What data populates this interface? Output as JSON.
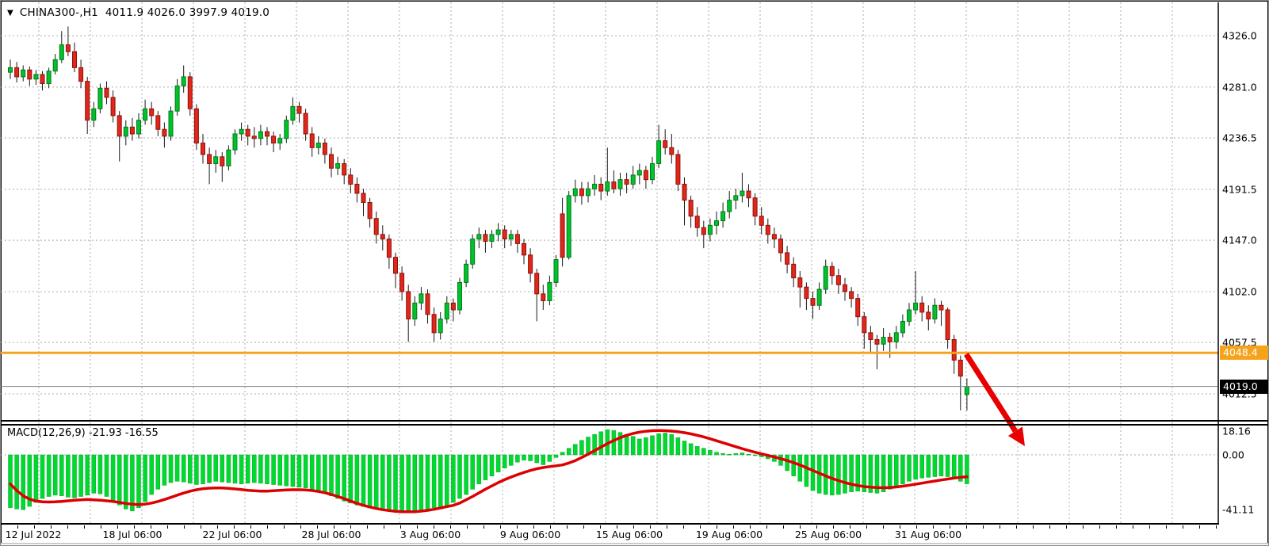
{
  "title": {
    "dropdown_icon": "▼",
    "symbol": "CHINA300-,H1",
    "ohlc": "4011.9 4026.0 3997.9 4019.0"
  },
  "indicator_label": {
    "name": "MACD(12,26,9)",
    "values": "-21.93 -16.55"
  },
  "colors": {
    "background": "#ffffff",
    "bull": "#00c32b",
    "bull_border": "#00791a",
    "bear": "#e0271b",
    "bear_border": "#8f1009",
    "wick": "#1a1a1a",
    "histogram": "#00d930",
    "histogram_border": "#00a824",
    "signal": "#dd0000",
    "orange_line": "#f5a31c",
    "price_line": "#808080",
    "grid": "#acacac",
    "badge_orange_bg": "#f5a31c",
    "badge_black_bg": "#000000",
    "badge_text": "#ffffff",
    "arrow": "#e80000",
    "axis_text": "#000000"
  },
  "price_axis": {
    "labels": [
      "4326.0",
      "4281.0",
      "4236.5",
      "4191.5",
      "4147.0",
      "4102.0",
      "4057.5",
      "4012.5"
    ],
    "values": [
      4326.0,
      4281.0,
      4236.5,
      4191.5,
      4147.0,
      4102.0,
      4057.5,
      4012.5
    ],
    "badges": [
      {
        "text": "4048.4",
        "value": 4048.4,
        "style": "orange"
      },
      {
        "text": "4019.0",
        "value": 4019.0,
        "style": "black"
      }
    ]
  },
  "macd_axis": {
    "labels": [
      "18.16",
      "0.00",
      "-41.11"
    ],
    "values": [
      18.16,
      0.0,
      -41.11
    ]
  },
  "time_axis": {
    "labels": [
      "12 Jul 2022",
      "18 Jul 06:00",
      "22 Jul 06:00",
      "28 Jul 06:00",
      "3 Aug 06:00",
      "9 Aug 06:00",
      "15 Aug 06:00",
      "19 Aug 06:00",
      "25 Aug 06:00",
      "31 Aug 06:00"
    ],
    "centers": [
      41,
      166,
      292,
      417,
      542,
      668,
      793,
      919,
      1044,
      1170
    ]
  },
  "chart_data": [
    {
      "type": "candlestick",
      "title": "CHINA300-,H1",
      "timeframe": "H1",
      "last_bar": {
        "open": 4011.9,
        "high": 4026.0,
        "low": 3997.9,
        "close": 4019.0
      },
      "ylim": [
        3990,
        4355
      ],
      "grid": "dashed",
      "legend_position": "top-left",
      "overlays": {
        "horizontal_line": {
          "value": 4048.4,
          "color": "#f5a31c"
        },
        "current_price_line": {
          "value": 4019.0,
          "color": "#808080"
        },
        "trend_arrow": {
          "direction": "down-right",
          "from_price": 4049,
          "to_price": 3973,
          "color": "#e80000"
        }
      },
      "candles": [
        [
          4294,
          4305,
          4288,
          4298
        ],
        [
          4298,
          4303,
          4285,
          4290
        ],
        [
          4290,
          4300,
          4286,
          4296
        ],
        [
          4296,
          4299,
          4282,
          4288
        ],
        [
          4288,
          4296,
          4283,
          4292
        ],
        [
          4292,
          4295,
          4278,
          4284
        ],
        [
          4284,
          4298,
          4280,
          4295
        ],
        [
          4295,
          4310,
          4292,
          4305
        ],
        [
          4305,
          4330,
          4302,
          4318
        ],
        [
          4318,
          4334,
          4308,
          4312
        ],
        [
          4312,
          4320,
          4294,
          4298
        ],
        [
          4298,
          4305,
          4280,
          4286
        ],
        [
          4286,
          4290,
          4240,
          4252
        ],
        [
          4252,
          4268,
          4246,
          4262
        ],
        [
          4262,
          4284,
          4258,
          4280
        ],
        [
          4280,
          4286,
          4266,
          4272
        ],
        [
          4272,
          4278,
          4250,
          4256
        ],
        [
          4256,
          4260,
          4216,
          4238
        ],
        [
          4238,
          4252,
          4230,
          4246
        ],
        [
          4246,
          4254,
          4234,
          4240
        ],
        [
          4240,
          4258,
          4236,
          4252
        ],
        [
          4252,
          4270,
          4248,
          4262
        ],
        [
          4262,
          4268,
          4248,
          4256
        ],
        [
          4256,
          4260,
          4238,
          4244
        ],
        [
          4244,
          4250,
          4228,
          4238
        ],
        [
          4238,
          4264,
          4234,
          4260
        ],
        [
          4260,
          4288,
          4256,
          4282
        ],
        [
          4282,
          4300,
          4276,
          4290
        ],
        [
          4290,
          4294,
          4256,
          4262
        ],
        [
          4262,
          4266,
          4226,
          4232
        ],
        [
          4232,
          4240,
          4214,
          4222
        ],
        [
          4222,
          4228,
          4196,
          4214
        ],
        [
          4214,
          4226,
          4206,
          4220
        ],
        [
          4220,
          4224,
          4198,
          4212
        ],
        [
          4212,
          4230,
          4208,
          4226
        ],
        [
          4226,
          4244,
          4222,
          4240
        ],
        [
          4240,
          4250,
          4234,
          4244
        ],
        [
          4244,
          4248,
          4230,
          4238
        ],
        [
          4238,
          4246,
          4228,
          4236
        ],
        [
          4236,
          4248,
          4230,
          4242
        ],
        [
          4242,
          4246,
          4230,
          4238
        ],
        [
          4238,
          4242,
          4224,
          4232
        ],
        [
          4232,
          4240,
          4226,
          4236
        ],
        [
          4236,
          4256,
          4232,
          4252
        ],
        [
          4252,
          4272,
          4248,
          4264
        ],
        [
          4264,
          4268,
          4250,
          4258
        ],
        [
          4258,
          4262,
          4234,
          4240
        ],
        [
          4240,
          4246,
          4220,
          4228
        ],
        [
          4228,
          4238,
          4222,
          4232
        ],
        [
          4232,
          4236,
          4214,
          4222
        ],
        [
          4222,
          4228,
          4202,
          4210
        ],
        [
          4210,
          4220,
          4204,
          4214
        ],
        [
          4214,
          4218,
          4196,
          4204
        ],
        [
          4204,
          4210,
          4188,
          4196
        ],
        [
          4196,
          4202,
          4180,
          4188
        ],
        [
          4188,
          4192,
          4168,
          4180
        ],
        [
          4180,
          4184,
          4158,
          4166
        ],
        [
          4166,
          4172,
          4144,
          4152
        ],
        [
          4152,
          4160,
          4138,
          4148
        ],
        [
          4148,
          4152,
          4122,
          4132
        ],
        [
          4132,
          4136,
          4105,
          4118
        ],
        [
          4118,
          4124,
          4094,
          4102
        ],
        [
          4102,
          4108,
          4058,
          4078
        ],
        [
          4078,
          4098,
          4072,
          4092
        ],
        [
          4092,
          4106,
          4086,
          4100
        ],
        [
          4100,
          4104,
          4074,
          4082
        ],
        [
          4082,
          4088,
          4058,
          4066
        ],
        [
          4066,
          4084,
          4060,
          4078
        ],
        [
          4078,
          4098,
          4074,
          4092
        ],
        [
          4092,
          4096,
          4076,
          4086
        ],
        [
          4086,
          4114,
          4082,
          4110
        ],
        [
          4110,
          4130,
          4106,
          4126
        ],
        [
          4126,
          4152,
          4122,
          4148
        ],
        [
          4148,
          4158,
          4140,
          4152
        ],
        [
          4152,
          4156,
          4136,
          4146
        ],
        [
          4146,
          4156,
          4140,
          4152
        ],
        [
          4152,
          4162,
          4146,
          4156
        ],
        [
          4156,
          4160,
          4140,
          4148
        ],
        [
          4148,
          4156,
          4142,
          4152
        ],
        [
          4152,
          4156,
          4136,
          4144
        ],
        [
          4144,
          4148,
          4126,
          4134
        ],
        [
          4134,
          4140,
          4110,
          4118
        ],
        [
          4118,
          4122,
          4076,
          4100
        ],
        [
          4100,
          4108,
          4086,
          4094
        ],
        [
          4094,
          4116,
          4090,
          4110
        ],
        [
          4110,
          4134,
          4106,
          4130
        ],
        [
          4170,
          4184,
          4124,
          4132
        ],
        [
          4132,
          4190,
          4130,
          4186
        ],
        [
          4186,
          4200,
          4180,
          4192
        ],
        [
          4192,
          4198,
          4178,
          4186
        ],
        [
          4186,
          4198,
          4180,
          4192
        ],
        [
          4192,
          4204,
          4186,
          4196
        ],
        [
          4196,
          4202,
          4182,
          4190
        ],
        [
          4190,
          4228,
          4186,
          4198
        ],
        [
          4198,
          4208,
          4188,
          4192
        ],
        [
          4192,
          4206,
          4186,
          4200
        ],
        [
          4200,
          4206,
          4188,
          4196
        ],
        [
          4196,
          4212,
          4192,
          4204
        ],
        [
          4204,
          4214,
          4196,
          4208
        ],
        [
          4208,
          4212,
          4192,
          4200
        ],
        [
          4200,
          4220,
          4196,
          4214
        ],
        [
          4214,
          4248,
          4210,
          4234
        ],
        [
          4234,
          4244,
          4222,
          4228
        ],
        [
          4228,
          4240,
          4214,
          4222
        ],
        [
          4222,
          4226,
          4190,
          4196
        ],
        [
          4196,
          4202,
          4160,
          4182
        ],
        [
          4182,
          4186,
          4158,
          4168
        ],
        [
          4168,
          4176,
          4150,
          4158
        ],
        [
          4158,
          4164,
          4140,
          4152
        ],
        [
          4152,
          4166,
          4146,
          4160
        ],
        [
          4160,
          4172,
          4152,
          4164
        ],
        [
          4164,
          4180,
          4158,
          4172
        ],
        [
          4172,
          4190,
          4166,
          4182
        ],
        [
          4182,
          4192,
          4174,
          4186
        ],
        [
          4186,
          4206,
          4180,
          4190
        ],
        [
          4190,
          4196,
          4176,
          4184
        ],
        [
          4184,
          4188,
          4160,
          4168
        ],
        [
          4168,
          4176,
          4152,
          4160
        ],
        [
          4160,
          4166,
          4144,
          4152
        ],
        [
          4152,
          4158,
          4140,
          4148
        ],
        [
          4148,
          4152,
          4128,
          4136
        ],
        [
          4136,
          4142,
          4118,
          4126
        ],
        [
          4126,
          4132,
          4106,
          4114
        ],
        [
          4114,
          4120,
          4088,
          4106
        ],
        [
          4106,
          4110,
          4086,
          4096
        ],
        [
          4096,
          4102,
          4078,
          4090
        ],
        [
          4090,
          4110,
          4086,
          4104
        ],
        [
          4104,
          4130,
          4100,
          4124
        ],
        [
          4124,
          4128,
          4108,
          4116
        ],
        [
          4116,
          4122,
          4100,
          4108
        ],
        [
          4108,
          4114,
          4094,
          4102
        ],
        [
          4102,
          4106,
          4088,
          4096
        ],
        [
          4096,
          4100,
          4072,
          4080
        ],
        [
          4080,
          4084,
          4052,
          4066
        ],
        [
          4066,
          4072,
          4048,
          4060
        ],
        [
          4060,
          4064,
          4034,
          4056
        ],
        [
          4056,
          4070,
          4050,
          4062
        ],
        [
          4062,
          4066,
          4044,
          4058
        ],
        [
          4058,
          4072,
          4052,
          4066
        ],
        [
          4066,
          4082,
          4062,
          4076
        ],
        [
          4076,
          4092,
          4072,
          4086
        ],
        [
          4086,
          4120,
          4082,
          4092
        ],
        [
          4092,
          4098,
          4076,
          4084
        ],
        [
          4084,
          4090,
          4068,
          4078
        ],
        [
          4078,
          4096,
          4074,
          4090
        ],
        [
          4090,
          4094,
          4072,
          4086
        ],
        [
          4086,
          4088,
          4052,
          4060
        ],
        [
          4060,
          4064,
          4030,
          4042
        ],
        [
          4042,
          4046,
          3998,
          4028
        ],
        [
          4011.9,
          4026.0,
          3997.9,
          4019.0
        ]
      ]
    },
    {
      "type": "macd",
      "params": "12,26,9",
      "macd_current": -21.93,
      "signal_current": -16.55,
      "ylim": [
        -51,
        22
      ],
      "zero_line": 0.0,
      "histogram": [
        -40,
        -41,
        -41.5,
        -39,
        -36,
        -33,
        -31.5,
        -30.5,
        -31,
        -32,
        -32.5,
        -31.5,
        -30.5,
        -29,
        -29.5,
        -31.5,
        -35.5,
        -38,
        -41,
        -42.5,
        -40,
        -35.5,
        -30,
        -26,
        -23,
        -21,
        -20,
        -20.5,
        -21.5,
        -22.5,
        -22,
        -21,
        -20,
        -20.5,
        -21,
        -21.5,
        -22,
        -21.5,
        -21,
        -21.5,
        -22,
        -22.5,
        -23,
        -23.5,
        -24,
        -24.5,
        -25,
        -26,
        -27.5,
        -29,
        -31,
        -33,
        -35,
        -36.5,
        -38,
        -39,
        -40,
        -41,
        -41.5,
        -42,
        -42.5,
        -43,
        -43,
        -42.5,
        -42,
        -41,
        -40,
        -41,
        -39,
        -36,
        -33,
        -30,
        -26,
        -22,
        -19,
        -16,
        -13,
        -10,
        -8,
        -5.5,
        -4,
        -4.5,
        -6,
        -7.5,
        -5,
        -2,
        2,
        5,
        8,
        11,
        13.5,
        15.5,
        17.5,
        19,
        18.5,
        17,
        15.5,
        14,
        12,
        13,
        14.5,
        16,
        16.5,
        15.5,
        13,
        10.5,
        8.5,
        6.5,
        5,
        3.5,
        2,
        1,
        0.5,
        1,
        1.5,
        0.5,
        -0.5,
        -1.5,
        -3,
        -5,
        -8,
        -12,
        -16,
        -20,
        -24,
        -27,
        -29,
        -30,
        -30.5,
        -30,
        -29,
        -28,
        -27.5,
        -28,
        -28.5,
        -29,
        -28,
        -26,
        -24,
        -22,
        -20,
        -18.5,
        -17.5,
        -17,
        -16.5,
        -16,
        -16.5,
        -18,
        -20,
        -21.93
      ],
      "signal": [
        -22,
        -27,
        -31,
        -33.5,
        -35,
        -35.5,
        -35.7,
        -35.5,
        -35.2,
        -34.8,
        -34.3,
        -34,
        -33.8,
        -34,
        -34.3,
        -34.8,
        -35.3,
        -36,
        -36.8,
        -37.4,
        -37.6,
        -37.3,
        -36.5,
        -35.3,
        -33.8,
        -32.2,
        -30.5,
        -28.9,
        -27.5,
        -26.4,
        -25.6,
        -25.2,
        -25,
        -25.1,
        -25.4,
        -25.8,
        -26.3,
        -26.8,
        -27.2,
        -27.4,
        -27.4,
        -27.2,
        -26.9,
        -26.6,
        -26.4,
        -26.4,
        -26.6,
        -27,
        -27.7,
        -28.7,
        -30,
        -31.5,
        -33.2,
        -35,
        -36.7,
        -38.2,
        -39.5,
        -40.6,
        -41.5,
        -42.2,
        -42.7,
        -43,
        -43.1,
        -43,
        -42.6,
        -42,
        -41.2,
        -40.2,
        -39.2,
        -38.2,
        -36.5,
        -34,
        -31.5,
        -28.8,
        -26,
        -23.5,
        -21,
        -18.8,
        -16.8,
        -15,
        -13.3,
        -11.8,
        -10.5,
        -9.6,
        -8.9,
        -8.3,
        -7.6,
        -6.2,
        -4.3,
        -2,
        0.5,
        3.2,
        5.9,
        8.5,
        10.9,
        13,
        14.8,
        16.2,
        17.2,
        17.9,
        18.3,
        18.4,
        18.3,
        18,
        17.5,
        16.8,
        15.9,
        14.8,
        13.6,
        12.2,
        10.7,
        9.2,
        7.7,
        6.2,
        4.7,
        3.3,
        2,
        0.8,
        -0.4,
        -1.6,
        -2.9,
        -4.3,
        -5.9,
        -7.7,
        -9.7,
        -11.8,
        -13.9,
        -15.9,
        -17.8,
        -19.5,
        -21,
        -22.2,
        -23.2,
        -24,
        -24.5,
        -24.8,
        -24.9,
        -24.7,
        -24.3,
        -23.7,
        -23,
        -22.2,
        -21.4,
        -20.6,
        -19.8,
        -19,
        -18.3,
        -17.6,
        -17,
        -16.55
      ]
    }
  ]
}
